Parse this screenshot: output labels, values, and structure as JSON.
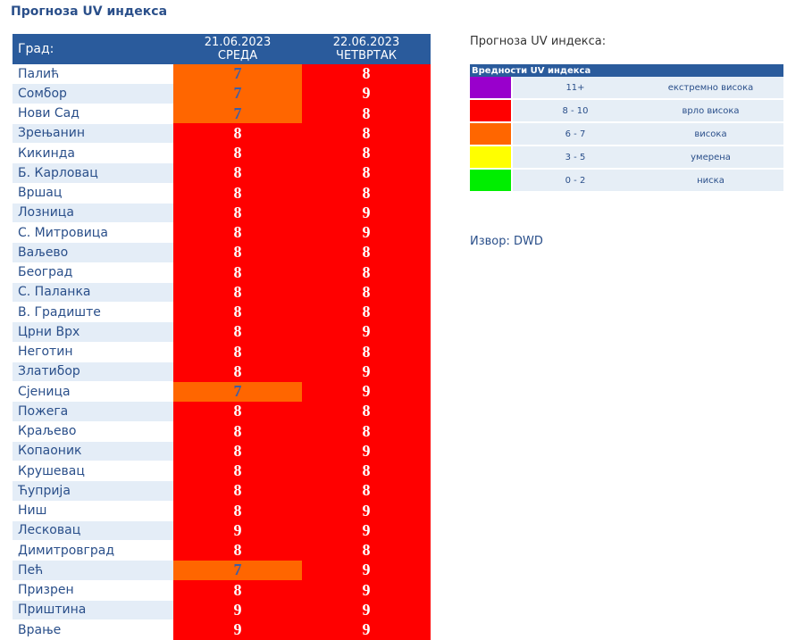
{
  "header": {
    "title": "Прогноза UV индекса"
  },
  "table": {
    "columns": [
      "Град:",
      {
        "date": "21.06.2023",
        "day": "СРЕДА"
      },
      {
        "date": "22.06.2023",
        "day": "ЧЕТВРТАК"
      }
    ],
    "rows": [
      {
        "city": "Палић",
        "values": [
          7,
          8
        ]
      },
      {
        "city": "Сомбор",
        "values": [
          7,
          9
        ]
      },
      {
        "city": "Нови Сад",
        "values": [
          7,
          8
        ]
      },
      {
        "city": "Зрењанин",
        "values": [
          8,
          8
        ]
      },
      {
        "city": "Кикинда",
        "values": [
          8,
          8
        ]
      },
      {
        "city": "Б. Карловац",
        "values": [
          8,
          8
        ]
      },
      {
        "city": "Вршац",
        "values": [
          8,
          8
        ]
      },
      {
        "city": "Лозница",
        "values": [
          8,
          9
        ]
      },
      {
        "city": "С. Митровица",
        "values": [
          8,
          9
        ]
      },
      {
        "city": "Ваљево",
        "values": [
          8,
          8
        ]
      },
      {
        "city": "Београд",
        "values": [
          8,
          8
        ]
      },
      {
        "city": "С. Паланка",
        "values": [
          8,
          8
        ]
      },
      {
        "city": "В. Градиште",
        "values": [
          8,
          8
        ]
      },
      {
        "city": "Црни Врх",
        "values": [
          8,
          9
        ]
      },
      {
        "city": "Неготин",
        "values": [
          8,
          8
        ]
      },
      {
        "city": "Златибор",
        "values": [
          8,
          9
        ]
      },
      {
        "city": "Сјеница",
        "values": [
          7,
          9
        ]
      },
      {
        "city": "Пожега",
        "values": [
          8,
          8
        ]
      },
      {
        "city": "Краљево",
        "values": [
          8,
          8
        ]
      },
      {
        "city": "Копаоник",
        "values": [
          8,
          9
        ]
      },
      {
        "city": "Крушевац",
        "values": [
          8,
          8
        ]
      },
      {
        "city": "Ћуприја",
        "values": [
          8,
          8
        ]
      },
      {
        "city": "Ниш",
        "values": [
          8,
          9
        ]
      },
      {
        "city": "Лесковац",
        "values": [
          9,
          9
        ]
      },
      {
        "city": "Димитровград",
        "values": [
          8,
          8
        ]
      },
      {
        "city": "Пећ",
        "values": [
          7,
          9
        ]
      },
      {
        "city": "Призрен",
        "values": [
          8,
          9
        ]
      },
      {
        "city": "Приштина",
        "values": [
          9,
          9
        ]
      },
      {
        "city": "Врање",
        "values": [
          9,
          9
        ]
      }
    ]
  },
  "legend": {
    "title": "Прогноза UV индекса:",
    "header": "Вредности UV индекса",
    "rows": [
      {
        "range": "11+",
        "label": "екстремно висока",
        "color": "#9900cc",
        "text_color": "#ffffff"
      },
      {
        "range": "8 - 10",
        "label": "врло висока",
        "color": "#ff0000",
        "text_color": "#ffffff"
      },
      {
        "range": "6 - 7",
        "label": "висока",
        "color": "#ff6600",
        "text_color": "#3b5ea8"
      },
      {
        "range": "3 - 5",
        "label": "умерена",
        "color": "#ffff00",
        "text_color": "#3b5ea8"
      },
      {
        "range": "0 - 2",
        "label": "ниска",
        "color": "#00ee00",
        "text_color": "#3b5ea8"
      }
    ]
  },
  "source": "Извор: DWD"
}
